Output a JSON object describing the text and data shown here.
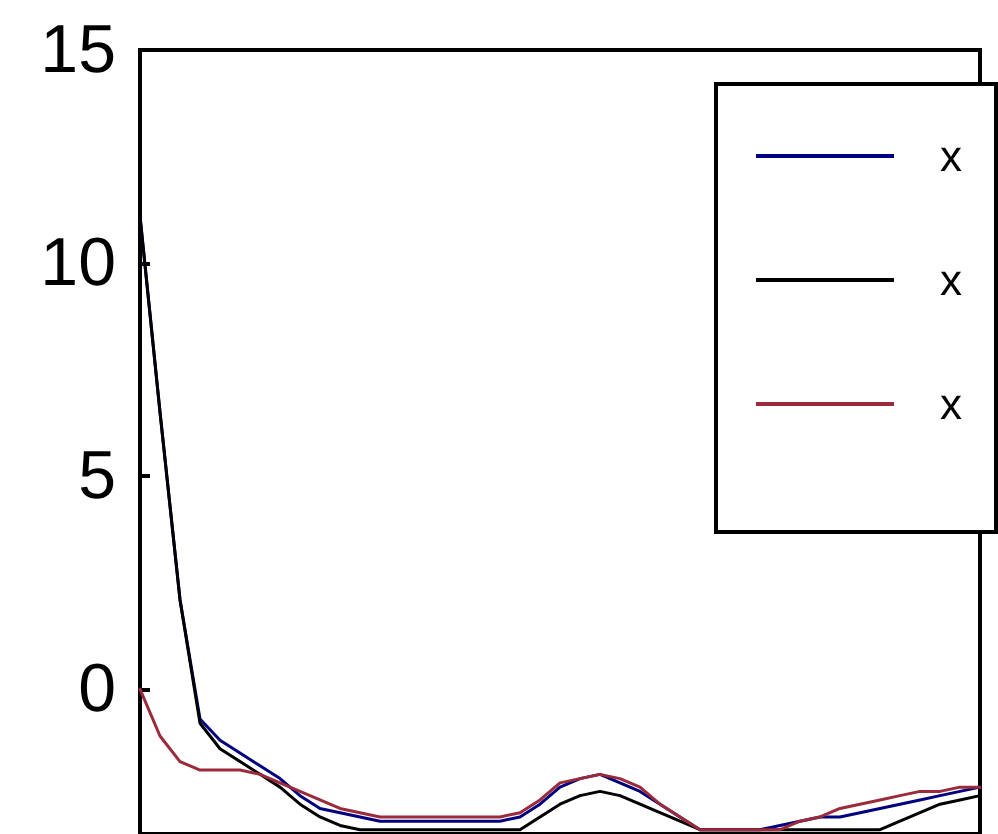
{
  "chart_data": {
    "type": "line",
    "ylim": [
      -3.4,
      15
    ],
    "yticks": [
      0,
      5,
      10,
      15
    ],
    "tick_labels": "y",
    "grid": false,
    "legend": "top right",
    "marker": "none",
    "line_style": "solid",
    "categories": [
      null,
      null,
      null,
      null,
      null,
      null,
      null,
      null,
      null,
      null,
      null,
      null,
      null,
      null,
      null,
      null,
      null,
      null,
      null,
      null,
      null,
      null,
      null,
      null,
      null,
      null,
      null,
      null,
      null,
      null,
      null,
      null,
      null,
      null,
      null,
      null,
      null,
      null,
      null,
      null,
      null,
      null,
      null
    ],
    "series": [
      {
        "name": "x",
        "color": "#000080",
        "values": [
          11.1,
          6.5,
          2.1,
          -0.7,
          -1.2,
          -1.5,
          -1.8,
          -2.1,
          -2.5,
          -2.8,
          -2.9,
          -3.0,
          -3.1,
          -3.1,
          -3.1,
          -3.1,
          -3.1,
          -3.1,
          -3.1,
          -3.0,
          -2.7,
          -2.3,
          -2.1,
          -2.0,
          -2.2,
          -2.4,
          -2.7,
          -3.0,
          -3.3,
          -3.3,
          -3.3,
          -3.3,
          -3.2,
          -3.1,
          -3.0,
          -3.0,
          -2.9,
          -2.8,
          -2.7,
          -2.6,
          -2.5,
          -2.4,
          -2.3
        ]
      },
      {
        "name": "x",
        "color": "#000000",
        "values": [
          11.1,
          6.5,
          2.1,
          -0.8,
          -1.4,
          -1.7,
          -2.0,
          -2.3,
          -2.7,
          -3.0,
          -3.2,
          -3.3,
          -3.3,
          -3.3,
          -3.3,
          -3.3,
          -3.3,
          -3.3,
          -3.3,
          -3.3,
          -3.0,
          -2.7,
          -2.5,
          -2.4,
          -2.5,
          -2.7,
          -2.9,
          -3.1,
          -3.3,
          -3.3,
          -3.3,
          -3.3,
          -3.3,
          -3.3,
          -3.3,
          -3.3,
          -3.3,
          -3.3,
          -3.1,
          -2.9,
          -2.7,
          -2.6,
          -2.5
        ]
      },
      {
        "name": "x",
        "color": "#9b2b3b",
        "values": [
          0,
          -1.1,
          -1.7,
          -1.9,
          -1.9,
          -1.9,
          -2.0,
          -2.2,
          -2.4,
          -2.6,
          -2.8,
          -2.9,
          -3.0,
          -3.0,
          -3.0,
          -3.0,
          -3.0,
          -3.0,
          -3.0,
          -2.9,
          -2.6,
          -2.2,
          -2.1,
          -2.0,
          -2.1,
          -2.3,
          -2.7,
          -3.0,
          -3.3,
          -3.3,
          -3.3,
          -3.3,
          -3.3,
          -3.1,
          -3.0,
          -2.8,
          -2.7,
          -2.6,
          -2.5,
          -2.4,
          -2.4,
          -2.3,
          -2.3
        ]
      }
    ]
  }
}
